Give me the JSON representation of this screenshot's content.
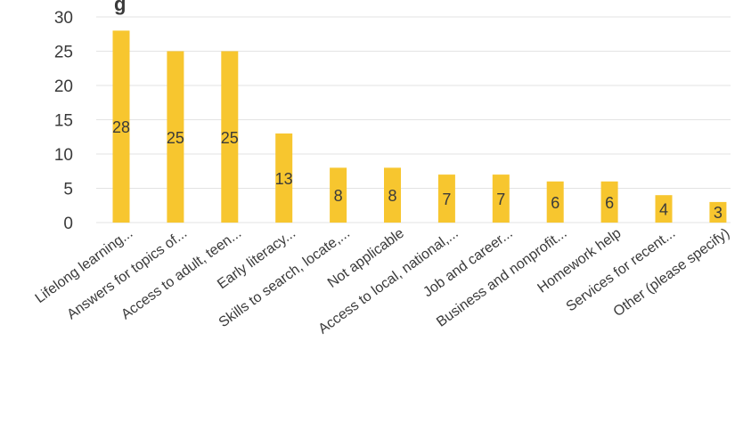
{
  "chart_data": {
    "type": "bar",
    "title_visible_fragment": "g",
    "categories": [
      "Lifelong learning...",
      "Answers for topics of...",
      "Access to adult, teen...",
      "Early literacy...",
      "Skills to search, locate,...",
      "Not applicable",
      "Access to local, national,...",
      "Job and career...",
      "Business and nonprofit...",
      "Homework help",
      "Services for recent...",
      "Other (please specify)"
    ],
    "values": [
      28,
      25,
      25,
      13,
      8,
      8,
      7,
      7,
      6,
      6,
      4,
      3
    ],
    "data_labels": [
      "28",
      "25",
      "25",
      "13",
      "8",
      "8",
      "7",
      "7",
      "6",
      "6",
      "4",
      "3"
    ],
    "yticks": [
      "0",
      "5",
      "10",
      "15",
      "20",
      "25",
      "30"
    ],
    "ylim": [
      0,
      30
    ],
    "grid": true,
    "legend": "none",
    "bar_color": "#f7c62f",
    "xlabel": "",
    "ylabel": ""
  }
}
